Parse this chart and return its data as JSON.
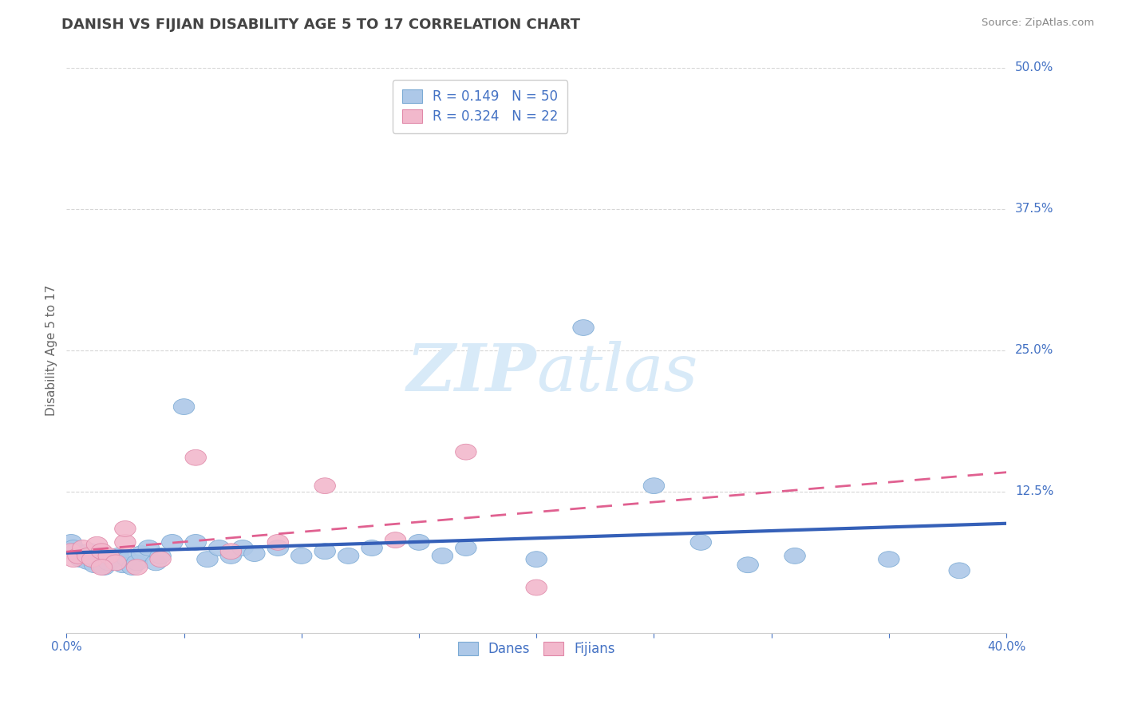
{
  "title": "DANISH VS FIJIAN DISABILITY AGE 5 TO 17 CORRELATION CHART",
  "source": "Source: ZipAtlas.com",
  "ylabel": "Disability Age 5 to 17",
  "xlim": [
    0.0,
    0.4
  ],
  "ylim": [
    0.0,
    0.5
  ],
  "xticks": [
    0.0,
    0.05,
    0.1,
    0.15,
    0.2,
    0.25,
    0.3,
    0.35,
    0.4
  ],
  "xticklabels": [
    "0.0%",
    "",
    "",
    "",
    "",
    "",
    "",
    "",
    "40.0%"
  ],
  "ytick_labels_right": [
    "50.0%",
    "37.5%",
    "25.0%",
    "12.5%"
  ],
  "ytick_vals_right": [
    0.5,
    0.375,
    0.25,
    0.125
  ],
  "grid_color": "#cccccc",
  "background_color": "#ffffff",
  "danes_color": "#adc8e8",
  "danes_edge_color": "#7baad4",
  "fijians_color": "#f2b8cc",
  "fijians_edge_color": "#e088a8",
  "danes_R": 0.149,
  "danes_N": 50,
  "fijians_R": 0.324,
  "fijians_N": 22,
  "danes_trend_color": "#3560b8",
  "fijians_trend_color": "#e06090",
  "legend_text_color": "#4472c4",
  "axis_label_color": "#4472c4",
  "title_color": "#444444",
  "source_color": "#888888",
  "watermark_color": "#d8eaf8",
  "danes_x": [
    0.002,
    0.003,
    0.004,
    0.005,
    0.006,
    0.007,
    0.008,
    0.009,
    0.01,
    0.011,
    0.012,
    0.013,
    0.014,
    0.015,
    0.016,
    0.018,
    0.02,
    0.022,
    0.024,
    0.026,
    0.028,
    0.03,
    0.032,
    0.035,
    0.038,
    0.04,
    0.045,
    0.05,
    0.055,
    0.06,
    0.065,
    0.07,
    0.075,
    0.08,
    0.09,
    0.1,
    0.11,
    0.12,
    0.13,
    0.15,
    0.16,
    0.17,
    0.2,
    0.22,
    0.25,
    0.27,
    0.29,
    0.31,
    0.35,
    0.38
  ],
  "danes_y": [
    0.08,
    0.075,
    0.072,
    0.068,
    0.065,
    0.07,
    0.068,
    0.063,
    0.072,
    0.065,
    0.06,
    0.068,
    0.062,
    0.06,
    0.058,
    0.062,
    0.065,
    0.068,
    0.06,
    0.065,
    0.058,
    0.062,
    0.07,
    0.075,
    0.062,
    0.068,
    0.08,
    0.2,
    0.08,
    0.065,
    0.075,
    0.068,
    0.075,
    0.07,
    0.075,
    0.068,
    0.072,
    0.068,
    0.075,
    0.08,
    0.068,
    0.075,
    0.065,
    0.27,
    0.13,
    0.08,
    0.06,
    0.068,
    0.065,
    0.055
  ],
  "fijians_x": [
    0.002,
    0.003,
    0.005,
    0.007,
    0.009,
    0.011,
    0.013,
    0.015,
    0.018,
    0.021,
    0.025,
    0.03,
    0.04,
    0.055,
    0.07,
    0.09,
    0.11,
    0.14,
    0.17,
    0.2,
    0.025,
    0.015
  ],
  "fijians_y": [
    0.072,
    0.065,
    0.068,
    0.075,
    0.068,
    0.065,
    0.078,
    0.072,
    0.068,
    0.062,
    0.08,
    0.058,
    0.065,
    0.155,
    0.072,
    0.08,
    0.13,
    0.082,
    0.16,
    0.04,
    0.092,
    0.058
  ]
}
